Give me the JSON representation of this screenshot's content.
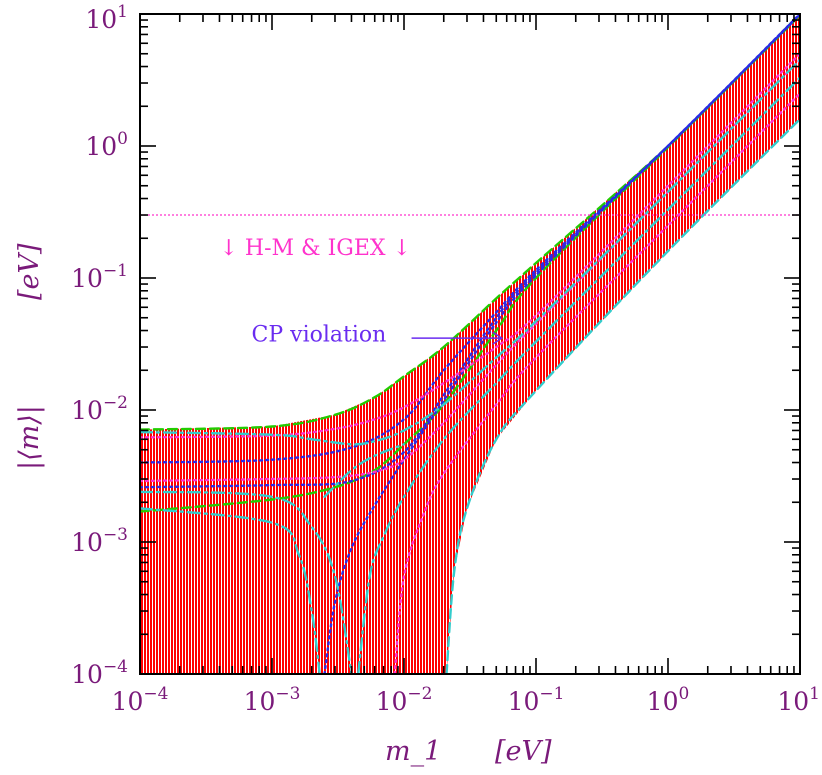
{
  "chart_data": {
    "type": "line",
    "xscale": "log",
    "yscale": "log",
    "xlim": [
      0.0001,
      10
    ],
    "ylim": [
      0.0001,
      10
    ],
    "xlabel": "m_1",
    "xunit": "[eV]",
    "ylabel": "|⟨m⟩|",
    "yunit": "[eV]",
    "xticks": [
      {
        "base": "10",
        "exp": "−4",
        "value": 0.0001
      },
      {
        "base": "10",
        "exp": "−3",
        "value": 0.001
      },
      {
        "base": "10",
        "exp": "−2",
        "value": 0.01
      },
      {
        "base": "10",
        "exp": "−1",
        "value": 0.1
      },
      {
        "base": "10",
        "exp": "0",
        "value": 1
      },
      {
        "base": "10",
        "exp": "1",
        "value": 10
      }
    ],
    "yticks": [
      {
        "base": "10",
        "exp": "−4",
        "value": 0.0001
      },
      {
        "base": "10",
        "exp": "−3",
        "value": 0.001
      },
      {
        "base": "10",
        "exp": "−2",
        "value": 0.01
      },
      {
        "base": "10",
        "exp": "−1",
        "value": 0.1
      },
      {
        "base": "10",
        "exp": "0",
        "value": 1
      },
      {
        "base": "10",
        "exp": "1",
        "value": 10
      }
    ],
    "band": {
      "color": "#ff0000",
      "upper": [
        [
          0.0001,
          0.0071
        ],
        [
          0.001,
          0.0075
        ],
        [
          0.003,
          0.0092
        ],
        [
          0.006,
          0.0125
        ],
        [
          0.01,
          0.018
        ],
        [
          0.02,
          0.03
        ],
        [
          0.05,
          0.07
        ],
        [
          0.1,
          0.13
        ],
        [
          1,
          1.0
        ],
        [
          10,
          10
        ]
      ],
      "lower": [
        [
          0.0001,
          0.0001
        ],
        [
          0.021,
          0.0001
        ],
        [
          0.024,
          0.0006
        ],
        [
          0.03,
          0.0018
        ],
        [
          0.05,
          0.006
        ],
        [
          0.1,
          0.014
        ],
        [
          1,
          0.16
        ],
        [
          10,
          1.6
        ]
      ]
    },
    "series": [
      {
        "color": "#22cc00",
        "dash": "dashed",
        "points": [
          [
            0.0001,
            0.0071
          ],
          [
            0.001,
            0.0075
          ],
          [
            0.003,
            0.0092
          ],
          [
            0.006,
            0.0125
          ],
          [
            0.01,
            0.018
          ],
          [
            0.02,
            0.03
          ],
          [
            0.05,
            0.07
          ],
          [
            0.1,
            0.13
          ],
          [
            1,
            1.0
          ],
          [
            10,
            10
          ]
        ]
      },
      {
        "color": "#22cc00",
        "dash": "dashed",
        "points": [
          [
            0.0001,
            0.0017
          ],
          [
            0.001,
            0.0021
          ],
          [
            0.003,
            0.0026
          ],
          [
            0.006,
            0.0035
          ],
          [
            0.01,
            0.0055
          ],
          [
            0.02,
            0.011
          ],
          [
            0.05,
            0.04
          ],
          [
            0.1,
            0.1
          ],
          [
            1,
            0.98
          ],
          [
            10,
            9.8
          ]
        ]
      },
      {
        "color": "#2a2ae8",
        "dash": "dotted",
        "points": [
          [
            0.0001,
            0.004
          ],
          [
            0.001,
            0.0042
          ],
          [
            0.004,
            0.0052
          ],
          [
            0.01,
            0.0085
          ],
          [
            0.02,
            0.02
          ],
          [
            0.05,
            0.055
          ],
          [
            0.1,
            0.115
          ],
          [
            1,
            1.0
          ],
          [
            10,
            10
          ]
        ]
      },
      {
        "color": "#2a2ae8",
        "dash": "dotted",
        "points": [
          [
            0.0001,
            0.0026
          ],
          [
            0.001,
            0.0027
          ],
          [
            0.004,
            0.0029
          ],
          [
            0.01,
            0.0048
          ],
          [
            0.02,
            0.013
          ],
          [
            0.05,
            0.05
          ],
          [
            0.1,
            0.11
          ],
          [
            1,
            1.0
          ],
          [
            10,
            10
          ]
        ]
      },
      {
        "color": "#2a2ae8",
        "dash": "dotted",
        "points": [
          [
            0.0025,
            0.0001
          ],
          [
            0.003,
            0.00035
          ],
          [
            0.004,
            0.0009
          ],
          [
            0.006,
            0.0019
          ],
          [
            0.01,
            0.0042
          ],
          [
            0.02,
            0.0118
          ],
          [
            0.05,
            0.046
          ],
          [
            0.1,
            0.105
          ],
          [
            1,
            1.0
          ],
          [
            10,
            9.9
          ]
        ]
      },
      {
        "color": "#ff33cc",
        "dash": "dotted",
        "points": [
          [
            0.0001,
            0.0062
          ],
          [
            0.001,
            0.0064
          ],
          [
            0.003,
            0.0072
          ],
          [
            0.006,
            0.0085
          ],
          [
            0.01,
            0.0105
          ],
          [
            0.02,
            0.016
          ],
          [
            0.05,
            0.03
          ],
          [
            0.1,
            0.052
          ],
          [
            1,
            0.5
          ],
          [
            10,
            5
          ]
        ]
      },
      {
        "color": "#ff33cc",
        "dash": "dotted",
        "points": [
          [
            0.0001,
            0.0029
          ],
          [
            0.001,
            0.003
          ],
          [
            0.003,
            0.0031
          ],
          [
            0.006,
            0.0034
          ],
          [
            0.01,
            0.0042
          ],
          [
            0.02,
            0.008
          ],
          [
            0.05,
            0.022
          ],
          [
            0.1,
            0.045
          ],
          [
            1,
            0.45
          ],
          [
            10,
            4.5
          ]
        ]
      },
      {
        "color": "#ff33cc",
        "dash": "dotted",
        "points": [
          [
            0.0085,
            0.0001
          ],
          [
            0.01,
            0.00055
          ],
          [
            0.014,
            0.0016
          ],
          [
            0.02,
            0.0033
          ],
          [
            0.05,
            0.011
          ],
          [
            0.1,
            0.025
          ],
          [
            1,
            0.25
          ],
          [
            10,
            2.5
          ]
        ]
      },
      {
        "color": "#33cccc",
        "dash": "dashdot",
        "points": [
          [
            0.0001,
            0.0068
          ],
          [
            0.001,
            0.0065
          ],
          [
            0.002,
            0.006
          ],
          [
            0.004,
            0.0055
          ],
          [
            0.006,
            0.0058
          ],
          [
            0.01,
            0.007
          ],
          [
            0.02,
            0.011
          ],
          [
            0.05,
            0.025
          ],
          [
            0.1,
            0.047
          ],
          [
            1,
            0.45
          ],
          [
            10,
            4.5
          ]
        ]
      },
      {
        "color": "#33cccc",
        "dash": "dashdot",
        "points": [
          [
            0.0001,
            0.0024
          ],
          [
            0.001,
            0.0022
          ],
          [
            0.002,
            0.0013
          ],
          [
            0.003,
            0.00055
          ],
          [
            0.004,
            0.0001
          ]
        ]
      },
      {
        "color": "#33cccc",
        "dash": "dashdot",
        "points": [
          [
            0.0001,
            0.0018
          ],
          [
            0.001,
            0.0014
          ],
          [
            0.0016,
            0.0008
          ],
          [
            0.002,
            0.0003
          ],
          [
            0.0023,
            0.0001
          ]
        ]
      },
      {
        "color": "#33cccc",
        "dash": "dashdot",
        "points": [
          [
            0.0025,
            0.0022
          ],
          [
            0.004,
            0.0035
          ],
          [
            0.006,
            0.0045
          ],
          [
            0.01,
            0.0055
          ]
        ]
      },
      {
        "color": "#33cccc",
        "dash": "dashdot",
        "points": [
          [
            0.0045,
            0.0001
          ],
          [
            0.0055,
            0.00055
          ],
          [
            0.007,
            0.0011
          ],
          [
            0.01,
            0.0022
          ],
          [
            0.02,
            0.006
          ],
          [
            0.05,
            0.016
          ],
          [
            0.1,
            0.033
          ],
          [
            1,
            0.33
          ],
          [
            10,
            3.3
          ]
        ]
      },
      {
        "color": "#33cccc",
        "dash": "dashed",
        "points": [
          [
            0.021,
            0.0001
          ],
          [
            0.024,
            0.0006
          ],
          [
            0.03,
            0.0018
          ],
          [
            0.05,
            0.006
          ],
          [
            0.1,
            0.014
          ],
          [
            1,
            0.16
          ],
          [
            10,
            1.6
          ]
        ]
      }
    ],
    "hline": {
      "y": 0.3,
      "color": "#ff33cc"
    },
    "annotations": {
      "hm": {
        "text": "↓ H-M & IGEX ↓",
        "x": 0.0004,
        "y": 0.15,
        "color": "#ff33cc"
      },
      "cp": {
        "text": "CP violation",
        "x": 0.0007,
        "y": 0.033,
        "color": "#6a2cf0",
        "arrow_to": [
          0.055,
          0.035
        ]
      }
    }
  }
}
